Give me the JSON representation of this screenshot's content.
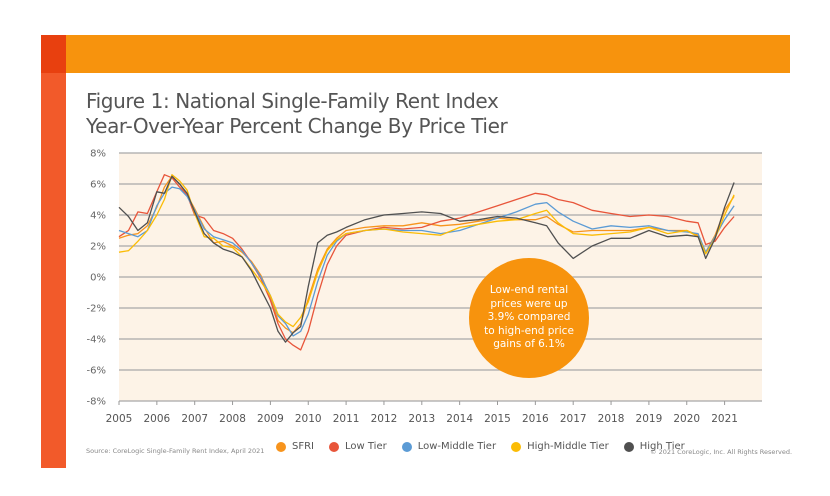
{
  "figure": {
    "title_line1": "Figure 1: National Single-Family Rent Index",
    "title_line2": "Year-Over-Year Percent Change By Price Tier",
    "source": "Source: CoreLogic Single-Family Rent Index, April 2021",
    "copyright": "© 2021 CoreLogic, Inc. All Rights Reserved.",
    "callout": "Low-end rental prices were up 3.9% compared to high-end price gains of 6.1%",
    "colors": {
      "brand_orange": "#f7930d",
      "brand_red": "#e8400f",
      "side_orange": "#f25a2a",
      "plot_bg": "#fdf3e7"
    }
  },
  "chart_data": {
    "type": "line",
    "title": "Figure 1: National Single-Family Rent Index Year-Over-Year Percent Change By Price Tier",
    "xlabel": "",
    "ylabel": "",
    "xlim": [
      2005,
      2022
    ],
    "ylim": [
      -8,
      8
    ],
    "grid": true,
    "legend": "bottom",
    "x_ticks": [
      "2005",
      "2006",
      "2007",
      "2008",
      "2009",
      "2010",
      "2011",
      "2012",
      "2013",
      "2014",
      "2015",
      "2016",
      "2017",
      "2018",
      "2019",
      "2020",
      "2021"
    ],
    "y_ticks": [
      "8%",
      "6%",
      "4%",
      "2%",
      "0%",
      "-2%",
      "-4%",
      "-6%",
      "-8%"
    ],
    "y_tick_values": [
      8,
      6,
      4,
      2,
      0,
      -2,
      -4,
      -6,
      -8
    ],
    "series": [
      {
        "name": "SFRI",
        "color": "#f7941d",
        "x": [
          2005,
          2005.25,
          2005.5,
          2005.75,
          2006,
          2006.2,
          2006.4,
          2006.6,
          2006.8,
          2007,
          2007.25,
          2007.5,
          2007.75,
          2008,
          2008.25,
          2008.5,
          2008.75,
          2009,
          2009.2,
          2009.4,
          2009.6,
          2009.8,
          2010,
          2010.25,
          2010.5,
          2010.75,
          2011,
          2011.5,
          2012,
          2012.5,
          2013,
          2013.5,
          2014,
          2014.5,
          2015,
          2015.5,
          2016,
          2016.3,
          2016.6,
          2017,
          2017.5,
          2018,
          2018.5,
          2019,
          2019.5,
          2020,
          2020.3,
          2020.5,
          2020.75,
          2021,
          2021.25
        ],
        "y": [
          2.5,
          2.7,
          2.8,
          3.3,
          4.5,
          5.8,
          6.5,
          6.0,
          5.3,
          4.4,
          3.2,
          2.2,
          2.3,
          2.0,
          1.6,
          1.0,
          0.1,
          -1.3,
          -2.8,
          -3.3,
          -3.6,
          -3.0,
          -1.4,
          0.5,
          1.8,
          2.5,
          3.0,
          3.2,
          3.3,
          3.3,
          3.5,
          3.3,
          3.4,
          3.6,
          3.8,
          3.7,
          3.7,
          3.9,
          3.4,
          2.9,
          3.0,
          3.0,
          3.0,
          3.2,
          3.0,
          3.0,
          2.7,
          1.6,
          2.7,
          4.3,
          5.2
        ]
      },
      {
        "name": "Low Tier",
        "color": "#e8553a",
        "x": [
          2005,
          2005.25,
          2005.5,
          2005.75,
          2006,
          2006.2,
          2006.4,
          2006.6,
          2006.8,
          2007,
          2007.25,
          2007.5,
          2007.75,
          2008,
          2008.25,
          2008.5,
          2008.75,
          2009,
          2009.2,
          2009.4,
          2009.6,
          2009.8,
          2010,
          2010.25,
          2010.5,
          2010.75,
          2011,
          2011.5,
          2012,
          2012.5,
          2013,
          2013.5,
          2014,
          2014.5,
          2015,
          2015.5,
          2016,
          2016.3,
          2016.6,
          2017,
          2017.5,
          2018,
          2018.5,
          2019,
          2019.5,
          2020,
          2020.3,
          2020.5,
          2020.75,
          2021,
          2021.25
        ],
        "y": [
          2.6,
          3.0,
          4.2,
          4.1,
          5.5,
          6.6,
          6.4,
          5.8,
          5.3,
          4.0,
          3.8,
          3.0,
          2.8,
          2.5,
          1.8,
          0.9,
          -0.1,
          -1.5,
          -3.0,
          -4.0,
          -4.4,
          -4.7,
          -3.5,
          -1.2,
          0.8,
          2.0,
          2.7,
          3.0,
          3.2,
          3.1,
          3.2,
          3.6,
          3.8,
          4.2,
          4.6,
          5.0,
          5.4,
          5.3,
          5.0,
          4.8,
          4.3,
          4.1,
          3.9,
          4.0,
          3.9,
          3.6,
          3.5,
          2.1,
          2.3,
          3.2,
          3.9
        ]
      },
      {
        "name": "Low-Middle Tier",
        "color": "#5b9bd5",
        "x": [
          2005,
          2005.25,
          2005.5,
          2005.75,
          2006,
          2006.2,
          2006.4,
          2006.6,
          2006.8,
          2007,
          2007.25,
          2007.5,
          2007.75,
          2008,
          2008.25,
          2008.5,
          2008.75,
          2009,
          2009.2,
          2009.4,
          2009.6,
          2009.8,
          2010,
          2010.25,
          2010.5,
          2010.75,
          2011,
          2011.5,
          2012,
          2012.5,
          2013,
          2013.5,
          2014,
          2014.5,
          2015,
          2015.5,
          2016,
          2016.3,
          2016.6,
          2017,
          2017.5,
          2018,
          2018.5,
          2019,
          2019.5,
          2020,
          2020.3,
          2020.5,
          2020.75,
          2021,
          2021.25
        ],
        "y": [
          3.0,
          2.8,
          2.6,
          3.0,
          4.6,
          5.4,
          5.8,
          5.7,
          5.2,
          4.3,
          3.1,
          2.6,
          2.4,
          2.2,
          1.7,
          0.9,
          0.0,
          -1.2,
          -2.5,
          -3.0,
          -3.8,
          -3.5,
          -2.4,
          -0.3,
          1.4,
          2.3,
          2.8,
          3.0,
          3.1,
          3.0,
          3.0,
          2.8,
          3.0,
          3.4,
          3.8,
          4.2,
          4.7,
          4.8,
          4.2,
          3.6,
          3.1,
          3.3,
          3.2,
          3.3,
          3.0,
          2.9,
          2.8,
          1.6,
          2.6,
          3.7,
          4.6
        ]
      },
      {
        "name": "High-Middle Tier",
        "color": "#fbbc05",
        "x": [
          2005,
          2005.25,
          2005.5,
          2005.75,
          2006,
          2006.2,
          2006.4,
          2006.6,
          2006.8,
          2007,
          2007.25,
          2007.5,
          2007.75,
          2008,
          2008.25,
          2008.5,
          2008.75,
          2009,
          2009.2,
          2009.4,
          2009.6,
          2009.8,
          2010,
          2010.25,
          2010.5,
          2010.75,
          2011,
          2011.5,
          2012,
          2012.5,
          2013,
          2013.5,
          2014,
          2014.5,
          2015,
          2015.5,
          2016,
          2016.3,
          2016.6,
          2017,
          2017.5,
          2018,
          2018.5,
          2019,
          2019.5,
          2020,
          2020.3,
          2020.5,
          2020.75,
          2021,
          2021.25
        ],
        "y": [
          1.6,
          1.7,
          2.3,
          3.0,
          4.0,
          5.0,
          6.6,
          6.2,
          5.6,
          4.1,
          2.6,
          2.5,
          2.0,
          1.9,
          1.3,
          0.5,
          -0.3,
          -1.2,
          -2.4,
          -2.9,
          -3.2,
          -2.6,
          -1.6,
          0.3,
          1.7,
          2.4,
          2.8,
          3.0,
          3.1,
          2.9,
          2.8,
          2.7,
          3.2,
          3.4,
          3.6,
          3.7,
          4.1,
          4.3,
          3.5,
          2.8,
          2.7,
          2.8,
          2.9,
          3.2,
          2.8,
          3.0,
          2.6,
          1.5,
          2.5,
          4.0,
          5.3
        ]
      },
      {
        "name": "High Tier",
        "color": "#505050",
        "x": [
          2005,
          2005.25,
          2005.5,
          2005.75,
          2006,
          2006.2,
          2006.4,
          2006.6,
          2006.8,
          2007,
          2007.25,
          2007.5,
          2007.75,
          2008,
          2008.25,
          2008.5,
          2008.75,
          2009,
          2009.2,
          2009.4,
          2009.6,
          2009.8,
          2010,
          2010.25,
          2010.5,
          2010.75,
          2011,
          2011.5,
          2012,
          2012.5,
          2013,
          2013.5,
          2014,
          2014.5,
          2015,
          2015.5,
          2016,
          2016.3,
          2016.6,
          2017,
          2017.5,
          2018,
          2018.5,
          2019,
          2019.5,
          2020,
          2020.3,
          2020.5,
          2020.75,
          2021,
          2021.25
        ],
        "y": [
          4.5,
          3.9,
          3.0,
          3.5,
          5.5,
          5.4,
          6.5,
          6.0,
          5.4,
          4.2,
          2.8,
          2.2,
          1.8,
          1.6,
          1.3,
          0.4,
          -0.8,
          -2.0,
          -3.5,
          -4.2,
          -3.6,
          -3.2,
          -0.6,
          2.2,
          2.7,
          2.9,
          3.2,
          3.7,
          4.0,
          4.1,
          4.2,
          4.1,
          3.6,
          3.7,
          3.9,
          3.8,
          3.5,
          3.3,
          2.2,
          1.2,
          2.0,
          2.5,
          2.5,
          3.0,
          2.6,
          2.7,
          2.6,
          1.2,
          2.5,
          4.5,
          6.1
        ]
      }
    ]
  }
}
